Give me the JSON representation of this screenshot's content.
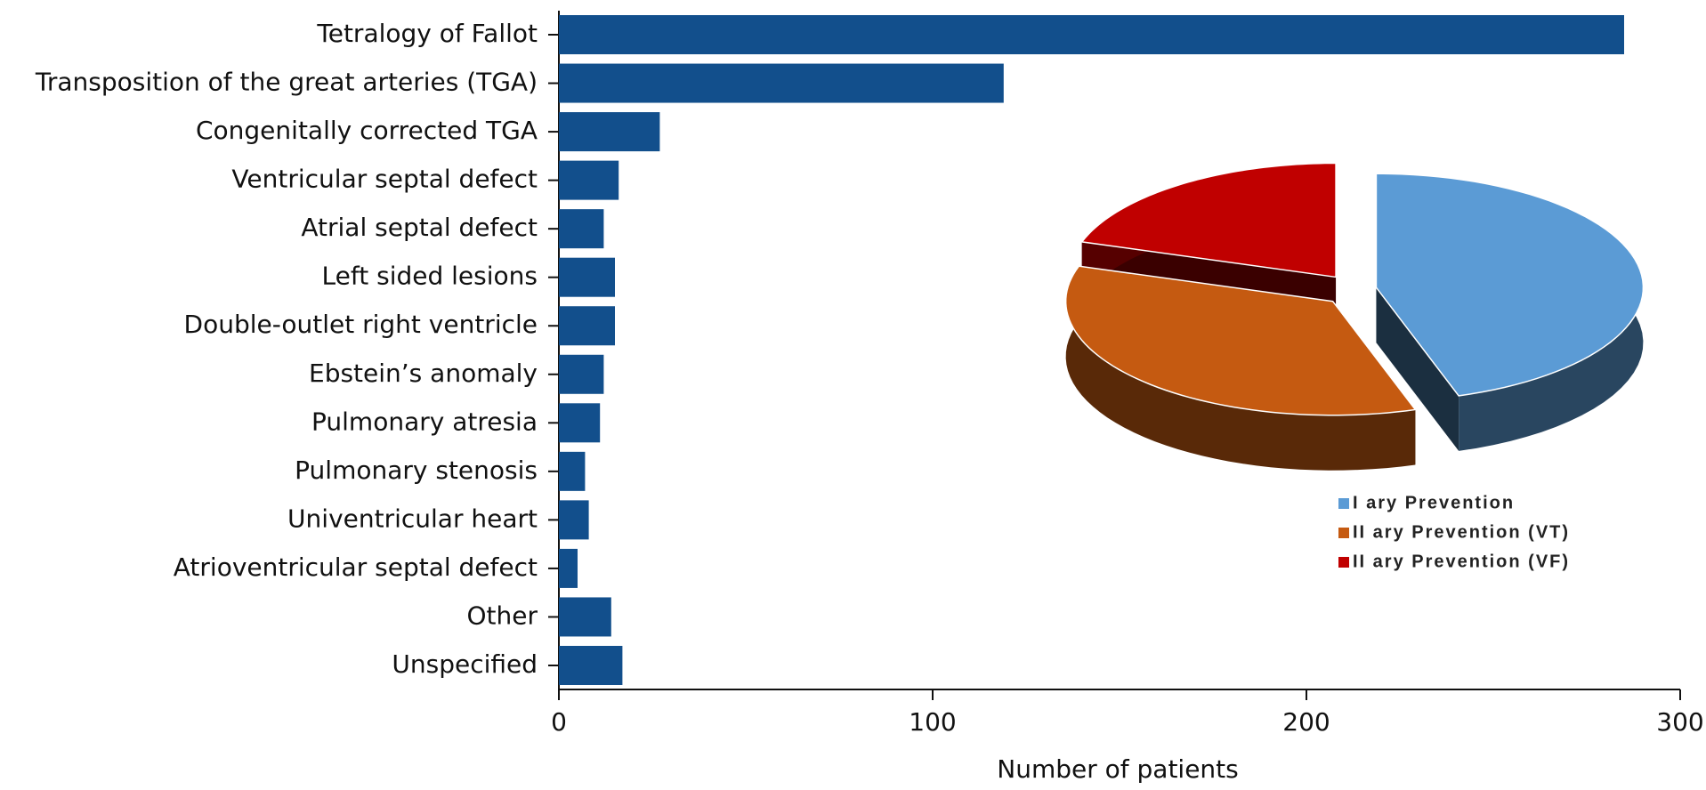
{
  "chart_data": [
    {
      "type": "bar",
      "orientation": "horizontal",
      "categories": [
        "Tetralogy of Fallot",
        "Transposition of the great arteries (TGA)",
        "Congenitally corrected TGA",
        "Ventricular septal defect",
        "Atrial septal defect",
        "Left sided lesions",
        "Double-outlet right ventricle",
        "Ebstein’s anomaly",
        "Pulmonary atresia",
        "Pulmonary stenosis",
        "Univentricular heart",
        "Atrioventricular septal defect",
        "Other",
        "Unspecified"
      ],
      "values": [
        285,
        119,
        27,
        16,
        12,
        15,
        15,
        12,
        11,
        7,
        8,
        5,
        14,
        17
      ],
      "color": "#124f8c",
      "xlabel": "Number of patients",
      "xlim": [
        0,
        300
      ],
      "xticks": [
        0,
        100,
        200,
        300
      ]
    },
    {
      "type": "pie",
      "categories": [
        "I ary Prevention",
        "II ary Prevention (VT)",
        "II ary Prevention (VF)"
      ],
      "values": [
        45,
        35,
        20
      ],
      "colors": [
        "#5b9bd5",
        "#c55a11",
        "#c00000"
      ]
    }
  ]
}
